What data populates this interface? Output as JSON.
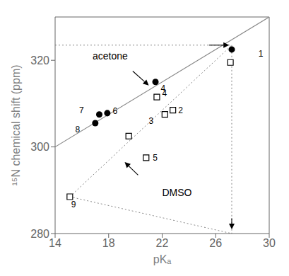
{
  "chart_data": {
    "type": "scatter",
    "xlabel": "pKₐ",
    "ylabel": "¹⁵N chemical shift (ppm)",
    "xlim": [
      14,
      30
    ],
    "ylim": [
      280,
      330
    ],
    "xticks": [
      14,
      18,
      22,
      26,
      30
    ],
    "yticks": [
      280,
      300,
      320
    ],
    "grid": false,
    "series": [
      {
        "marker": "circle",
        "color": "#000000",
        "x": [
          27.2,
          21.5,
          17.3,
          17.9,
          17.0
        ],
        "values": [
          322.5,
          315.0,
          307.5,
          307.8,
          305.5
        ]
      },
      {
        "marker": "open square",
        "color": "#000000",
        "x": [
          27.1,
          22.8,
          22.2,
          21.6,
          19.5,
          20.8,
          15.1
        ],
        "values": [
          319.5,
          308.5,
          307.5,
          311.5,
          302.5,
          297.5,
          288.5
        ]
      }
    ],
    "lines": [
      {
        "x": [
          14,
          30
        ],
        "y": [
          300.0,
          330.0
        ],
        "line_style": "solid",
        "color": "#888888"
      },
      {
        "x": [
          14.0,
          27.2
        ],
        "y": [
          323.5,
          323.5
        ],
        "line_style": "dotted",
        "color": "#888888"
      },
      {
        "x": [
          27.2,
          27.2
        ],
        "y": [
          323.5,
          280.0
        ],
        "line_style": "dotted",
        "color": "#888888"
      },
      {
        "x": [
          15.1,
          27.2
        ],
        "y": [
          288.5,
          323.5
        ],
        "line_style": "dotted",
        "color": "#888888"
      },
      {
        "x": [
          15.1,
          27.2
        ],
        "y": [
          288.5,
          280.0
        ],
        "line_style": "dotted",
        "color": "#888888"
      }
    ],
    "arrows": [
      {
        "x": [
          19.8,
          21.0
        ],
        "y": [
          317.5,
          314.2
        ]
      },
      {
        "x": [
          20.2,
          19.2
        ],
        "y": [
          293.5,
          296.5
        ]
      },
      {
        "x": [
          25.5,
          27.0
        ],
        "y": [
          323.5,
          323.5
        ]
      },
      {
        "x": [
          27.2,
          27.2
        ],
        "y": [
          283.5,
          281.0
        ]
      }
    ],
    "annotations": [
      {
        "text": "1",
        "x": 29.2,
        "y": 321.5
      },
      {
        "text": "4",
        "x": 21.9,
        "y": 313.5
      },
      {
        "text": "7",
        "x": 15.8,
        "y": 308.5
      },
      {
        "text": "6",
        "x": 18.3,
        "y": 308.3
      },
      {
        "text": "8",
        "x": 15.5,
        "y": 304.0
      },
      {
        "text": "2",
        "x": 23.2,
        "y": 308.5
      },
      {
        "text": "3",
        "x": 21.0,
        "y": 306.0
      },
      {
        "text": "4",
        "x": 22.0,
        "y": 312.3
      },
      {
        "text": "5",
        "x": 21.3,
        "y": 297.5
      },
      {
        "text": "9",
        "x": 15.2,
        "y": 286.7
      },
      {
        "text": "acetone",
        "x": 16.8,
        "y": 321.0
      },
      {
        "text": "DMSO",
        "x": 22.0,
        "y": 289.5
      }
    ]
  }
}
